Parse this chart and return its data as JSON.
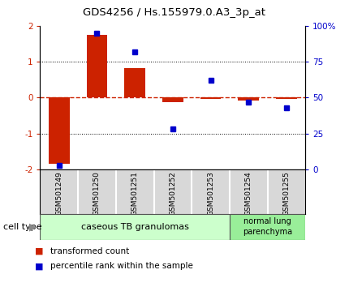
{
  "title": "GDS4256 / Hs.155979.0.A3_3p_at",
  "samples": [
    "GSM501249",
    "GSM501250",
    "GSM501251",
    "GSM501252",
    "GSM501253",
    "GSM501254",
    "GSM501255"
  ],
  "transformed_count": [
    -1.85,
    1.75,
    0.82,
    -0.12,
    -0.03,
    -0.08,
    -0.03
  ],
  "percentile_rank": [
    3,
    95,
    82,
    28,
    62,
    47,
    43
  ],
  "ylim_left": [
    -2,
    2
  ],
  "ylim_right": [
    0,
    100
  ],
  "yticks_left": [
    -2,
    -1,
    0,
    1,
    2
  ],
  "yticks_right": [
    0,
    25,
    50,
    75,
    100
  ],
  "ytick_labels_right": [
    "0",
    "25",
    "50",
    "75",
    "100%"
  ],
  "bar_color": "#cc2200",
  "dot_color": "#0000cc",
  "zero_line_color": "#cc2200",
  "groups": [
    {
      "label": "caseous TB granulomas",
      "n_samples": 5,
      "color": "#ccffcc"
    },
    {
      "label": "normal lung\nparenchyma",
      "n_samples": 2,
      "color": "#99ee99"
    }
  ],
  "cell_type_label": "cell type",
  "legend": [
    {
      "color": "#cc2200",
      "label": "transformed count"
    },
    {
      "color": "#0000cc",
      "label": "percentile rank within the sample"
    }
  ],
  "bg_color": "#ffffff",
  "plot_bg": "#ffffff",
  "tick_area_color": "#c8c8c8"
}
